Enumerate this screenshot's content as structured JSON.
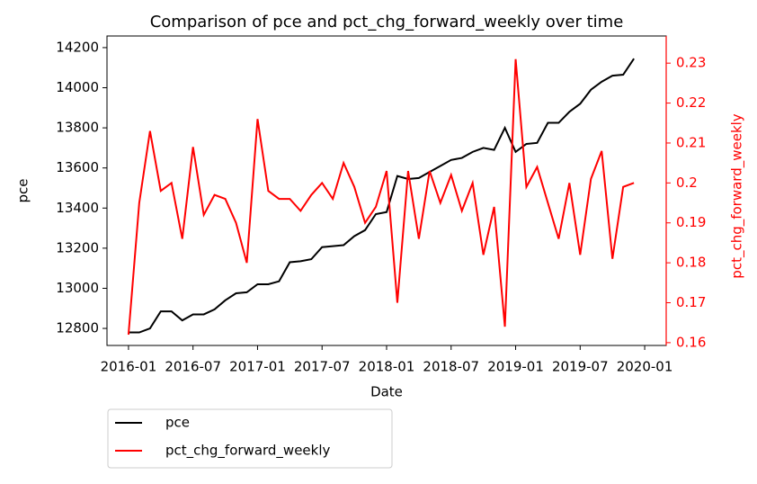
{
  "chart_data": {
    "type": "line",
    "title": "Comparison of pce and pct_chg_forward_weekly over time",
    "x_label": "Date",
    "y_label": "pce",
    "y2_label": "pct_chg_forward_weekly",
    "x": [
      "2016-01",
      "2016-02",
      "2016-03",
      "2016-04",
      "2016-05",
      "2016-06",
      "2016-07",
      "2016-08",
      "2016-09",
      "2016-10",
      "2016-11",
      "2016-12",
      "2017-01",
      "2017-02",
      "2017-03",
      "2017-04",
      "2017-05",
      "2017-06",
      "2017-07",
      "2017-08",
      "2017-09",
      "2017-10",
      "2017-11",
      "2017-12",
      "2018-01",
      "2018-02",
      "2018-03",
      "2018-04",
      "2018-05",
      "2018-06",
      "2018-07",
      "2018-08",
      "2018-09",
      "2018-10",
      "2018-11",
      "2018-12",
      "2019-01",
      "2019-02",
      "2019-03",
      "2019-04",
      "2019-05",
      "2019-06",
      "2019-07",
      "2019-08",
      "2019-09",
      "2019-10",
      "2019-11",
      "2019-12"
    ],
    "series": [
      {
        "name": "pce",
        "color": "#000000",
        "values": [
          12780,
          12780,
          12800,
          12885,
          12885,
          12840,
          12870,
          12870,
          12895,
          12940,
          12975,
          12980,
          13020,
          13020,
          13035,
          13130,
          13135,
          13145,
          13205,
          13210,
          13215,
          13260,
          13290,
          13370,
          13380,
          13560,
          13545,
          13550,
          13580,
          13610,
          13640,
          13650,
          13680,
          13700,
          13690,
          13800,
          13680,
          13720,
          13725,
          13825,
          13825,
          13880,
          13920,
          13990,
          14030,
          14060,
          14065,
          14145
        ]
      },
      {
        "name": "pct_chg_forward_weekly",
        "color": "#ff0000",
        "axis": "y2",
        "values": [
          0.162,
          0.195,
          0.213,
          0.198,
          0.2,
          0.186,
          0.209,
          0.192,
          0.197,
          0.196,
          0.19,
          0.18,
          0.216,
          0.198,
          0.196,
          0.196,
          0.193,
          0.197,
          0.2,
          0.196,
          0.205,
          0.199,
          0.19,
          0.194,
          0.203,
          0.17,
          0.203,
          0.186,
          0.203,
          0.195,
          0.202,
          0.193,
          0.2,
          0.182,
          0.194,
          0.164,
          0.231,
          0.199,
          0.204,
          0.195,
          0.186,
          0.2,
          0.182,
          0.201,
          0.208,
          0.181,
          0.199,
          0.2
        ]
      }
    ],
    "xlim": [
      "2015-11",
      "2020-03"
    ],
    "xticks": [
      "2016-01",
      "2016-07",
      "2017-01",
      "2017-07",
      "2018-01",
      "2018-07",
      "2019-01",
      "2019-07",
      "2020-01"
    ],
    "ylim": [
      12715,
      14258
    ],
    "yticks": [
      12800,
      13000,
      13200,
      13400,
      13600,
      13800,
      14000,
      14200
    ],
    "y2lim": [
      0.1593,
      0.2368
    ],
    "y2ticks": [
      0.16,
      0.17,
      0.18,
      0.19,
      0.2,
      0.21,
      0.22,
      0.23
    ],
    "y2_color": "#ff0000",
    "legend": "below-left"
  }
}
